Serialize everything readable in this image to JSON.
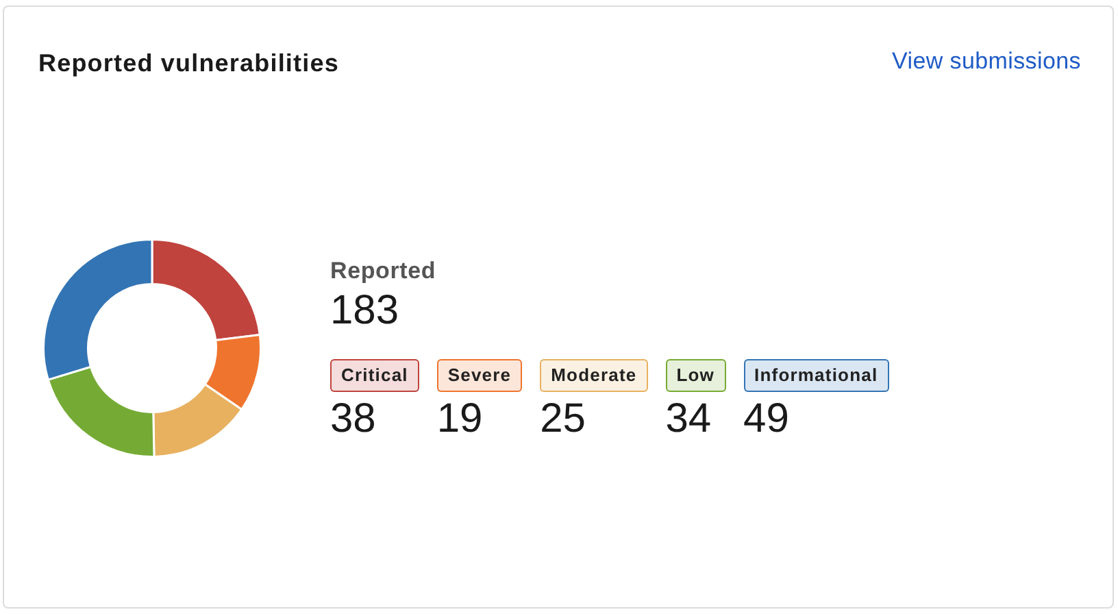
{
  "chart_data": {
    "type": "donut",
    "title": "Reported vulnerabilities",
    "categories": [
      "Critical",
      "Severe",
      "Moderate",
      "Low",
      "Informational"
    ],
    "values": [
      38,
      19,
      25,
      34,
      49
    ],
    "colors": [
      "#c0433d",
      "#ef742e",
      "#e8b160",
      "#75ab34",
      "#3374b4"
    ],
    "legend": "right",
    "data_labels": true,
    "annotations": [
      "View submissions",
      "Reported",
      "183"
    ]
  }
}
